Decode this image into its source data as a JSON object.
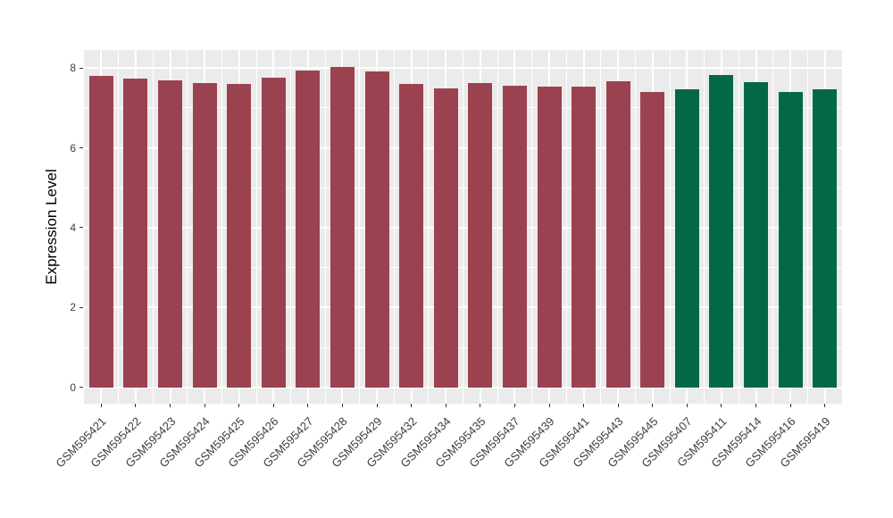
{
  "page": {
    "background": "#FFFFFF"
  },
  "chart_data": {
    "type": "bar",
    "title": "",
    "xlabel": "",
    "ylabel": "Expression Level",
    "categories": [
      "GSM595421",
      "GSM595422",
      "GSM595423",
      "GSM595424",
      "GSM595425",
      "GSM595426",
      "GSM595427",
      "GSM595428",
      "GSM595429",
      "GSM595432",
      "GSM595434",
      "GSM595435",
      "GSM595437",
      "GSM595439",
      "GSM595441",
      "GSM595443",
      "GSM595445",
      "GSM595407",
      "GSM595411",
      "GSM595414",
      "GSM595416",
      "GSM595419"
    ],
    "values": [
      7.81,
      7.74,
      7.68,
      7.63,
      7.6,
      7.76,
      7.93,
      8.02,
      7.91,
      7.6,
      7.48,
      7.62,
      7.55,
      7.53,
      7.53,
      7.66,
      7.39,
      7.46,
      7.82,
      7.65,
      7.4,
      7.46
    ],
    "bar_groups": [
      "red",
      "red",
      "red",
      "red",
      "red",
      "red",
      "red",
      "red",
      "red",
      "red",
      "red",
      "red",
      "red",
      "red",
      "red",
      "red",
      "red",
      "green",
      "green",
      "green",
      "green",
      "green"
    ],
    "group_colors": {
      "red": "#9B4250",
      "green": "#026848"
    },
    "yticks": [
      0,
      2,
      4,
      6,
      8
    ],
    "yticks_minor": [
      1,
      3,
      5,
      7
    ],
    "ylim": [
      0,
      8.45
    ],
    "ylim_expanded": [
      -0.41,
      8.45
    ],
    "bar_width_fraction": 0.7,
    "legend": "none",
    "x_label_angle": -45,
    "grid": "on",
    "panel_background": "#EBEBEB",
    "gridline_color": "#FFFFFF",
    "tick_color": "#333333",
    "axis_text_color": "#3d3d3d",
    "axis_title_color": "#000000"
  }
}
